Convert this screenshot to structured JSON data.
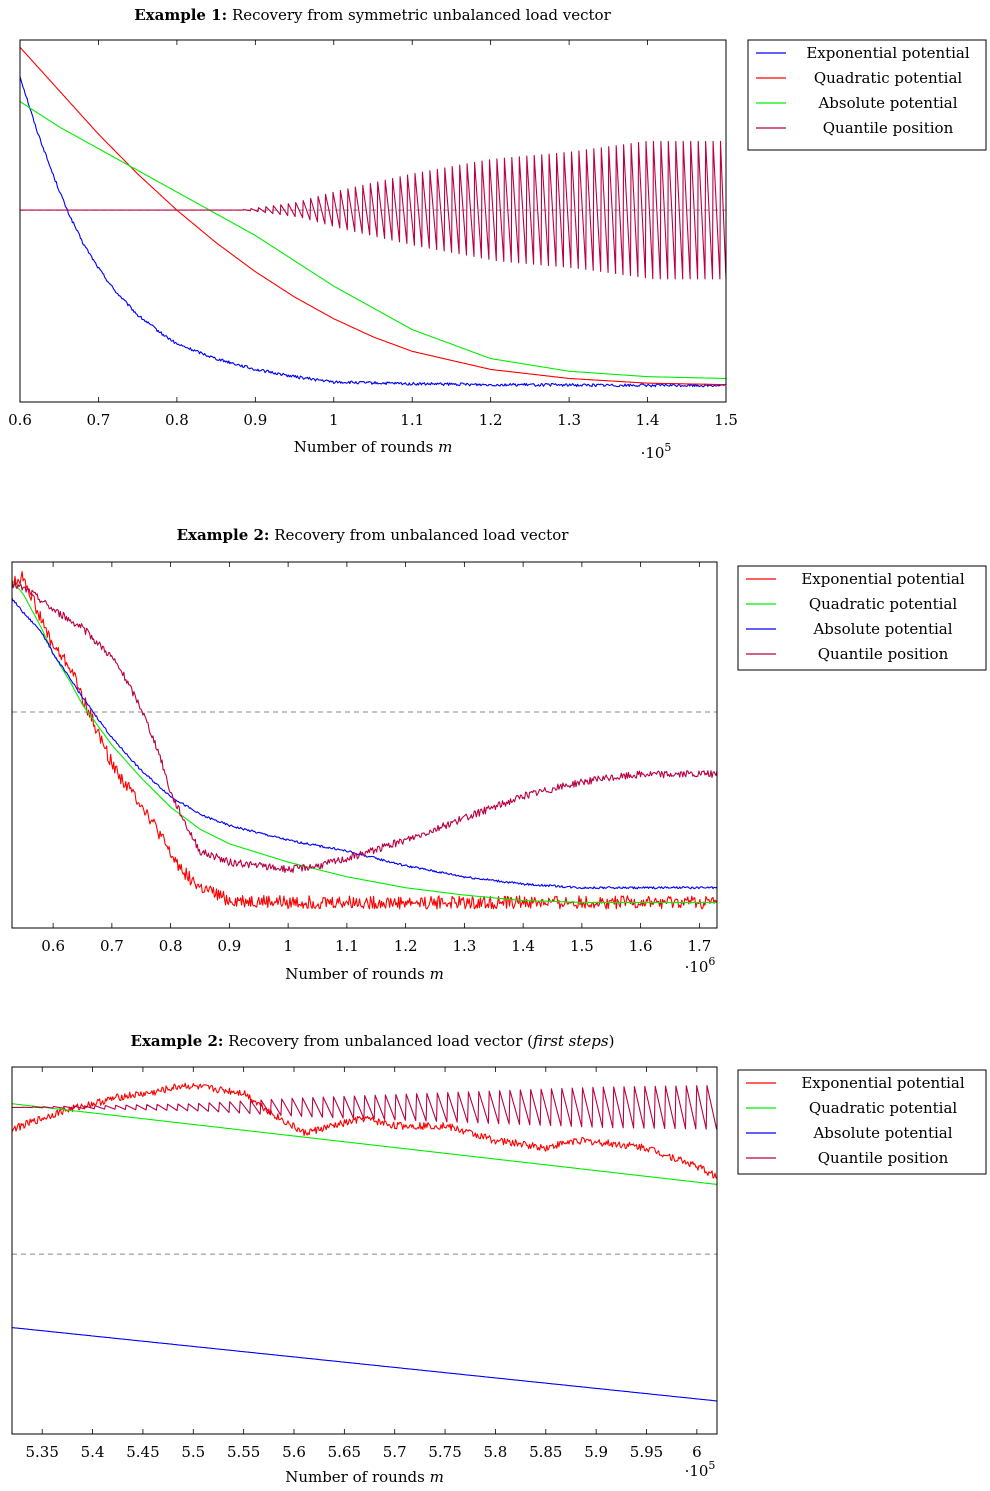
{
  "chart_data": [
    {
      "type": "line",
      "title_bold": "Example 1:",
      "title": "Recovery from symmetric unbalanced load vector",
      "title_italic": "",
      "xlabel": "Number of rounds m",
      "x_multiplier": "·10^5",
      "xlim": [
        0.6,
        1.5
      ],
      "ylim": [
        0,
        1
      ],
      "xticks": [
        "0.6",
        "0.7",
        "0.8",
        "0.9",
        "1",
        "1.1",
        "1.2",
        "1.3",
        "1.4",
        "1.5"
      ],
      "grid": false,
      "legend_position": "right",
      "reference_line": 0.53,
      "series": [
        {
          "name": "Exponential potential",
          "color": "#0000ff",
          "noise": 0.004,
          "x": [
            0.6,
            0.62,
            0.64,
            0.66,
            0.68,
            0.7,
            0.72,
            0.75,
            0.78,
            0.8,
            0.85,
            0.9,
            0.95,
            1.0,
            1.1,
            1.2,
            1.3,
            1.4,
            1.5
          ],
          "y": [
            0.9,
            0.76,
            0.64,
            0.53,
            0.44,
            0.37,
            0.31,
            0.24,
            0.19,
            0.16,
            0.12,
            0.09,
            0.07,
            0.055,
            0.05,
            0.048,
            0.047,
            0.046,
            0.046
          ]
        },
        {
          "name": "Quadratic potential",
          "color": "#ff0000",
          "noise": 0,
          "x": [
            0.6,
            0.65,
            0.7,
            0.75,
            0.8,
            0.85,
            0.9,
            0.95,
            1.0,
            1.05,
            1.1,
            1.2,
            1.3,
            1.4,
            1.5
          ],
          "y": [
            0.98,
            0.86,
            0.74,
            0.63,
            0.53,
            0.44,
            0.36,
            0.29,
            0.23,
            0.18,
            0.14,
            0.09,
            0.065,
            0.052,
            0.048
          ]
        },
        {
          "name": "Absolute potential",
          "color": "#00ee00",
          "noise": 0,
          "x": [
            0.6,
            0.65,
            0.7,
            0.75,
            0.8,
            0.85,
            0.9,
            0.95,
            1.0,
            1.05,
            1.1,
            1.15,
            1.2,
            1.3,
            1.4,
            1.5
          ],
          "y": [
            0.83,
            0.76,
            0.7,
            0.64,
            0.58,
            0.52,
            0.46,
            0.39,
            0.32,
            0.26,
            0.2,
            0.16,
            0.12,
            0.085,
            0.07,
            0.065
          ]
        },
        {
          "name": "Quantile position",
          "color": "#bb0044",
          "noise": 0,
          "sawtooth": {
            "period": 0.0095,
            "center": 0.53,
            "amp_x": [
              0.6,
              0.88,
              0.95,
              1.0,
              1.1,
              1.2,
              1.3,
              1.4,
              1.5
            ],
            "amp_y": [
              0,
              0,
              0.02,
              0.05,
              0.1,
              0.14,
              0.16,
              0.19,
              0.19
            ]
          }
        }
      ]
    },
    {
      "type": "line",
      "title_bold": "Example 2:",
      "title": "Recovery from unbalanced load vector",
      "title_italic": "",
      "xlabel": "Number of rounds m",
      "x_multiplier": "·10^6",
      "xlim": [
        0.53,
        1.73
      ],
      "ylim": [
        0,
        1
      ],
      "xticks": [
        "0.6",
        "0.7",
        "0.8",
        "0.9",
        "1",
        "1.1",
        "1.2",
        "1.3",
        "1.4",
        "1.5",
        "1.6",
        "1.7"
      ],
      "grid": false,
      "legend_position": "right",
      "reference_line": 0.59,
      "series": [
        {
          "name": "Exponential potential",
          "color": "#ff0000",
          "noise": 0.018,
          "x": [
            0.53,
            0.55,
            0.58,
            0.6,
            0.63,
            0.65,
            0.68,
            0.7,
            0.72,
            0.75,
            0.78,
            0.8,
            0.83,
            0.85,
            0.88,
            0.9,
            1.0,
            1.2,
            1.5,
            1.73
          ],
          "y": [
            0.94,
            0.96,
            0.84,
            0.77,
            0.71,
            0.63,
            0.52,
            0.45,
            0.4,
            0.34,
            0.26,
            0.2,
            0.14,
            0.11,
            0.09,
            0.075,
            0.07,
            0.07,
            0.07,
            0.07
          ]
        },
        {
          "name": "Quadratic potential",
          "color": "#00ee00",
          "noise": 0,
          "x": [
            0.53,
            0.55,
            0.58,
            0.6,
            0.63,
            0.65,
            0.7,
            0.75,
            0.8,
            0.85,
            0.9,
            1.0,
            1.1,
            1.2,
            1.3,
            1.4,
            1.5,
            1.73
          ],
          "y": [
            0.95,
            0.91,
            0.82,
            0.75,
            0.67,
            0.61,
            0.5,
            0.41,
            0.33,
            0.27,
            0.23,
            0.18,
            0.14,
            0.11,
            0.09,
            0.075,
            0.07,
            0.07
          ]
        },
        {
          "name": "Absolute potential",
          "color": "#0000ff",
          "noise": 0.003,
          "x": [
            0.53,
            0.55,
            0.58,
            0.6,
            0.65,
            0.7,
            0.75,
            0.8,
            0.85,
            0.9,
            1.0,
            1.1,
            1.2,
            1.3,
            1.4,
            1.5,
            1.6,
            1.73
          ],
          "y": [
            0.9,
            0.86,
            0.81,
            0.75,
            0.63,
            0.52,
            0.43,
            0.36,
            0.31,
            0.28,
            0.24,
            0.21,
            0.17,
            0.14,
            0.12,
            0.11,
            0.11,
            0.11
          ]
        },
        {
          "name": "Quantile position",
          "color": "#bb0044",
          "noise": 0.01,
          "x": [
            0.53,
            0.56,
            0.6,
            0.65,
            0.7,
            0.72,
            0.75,
            0.78,
            0.8,
            0.83,
            0.85,
            0.9,
            0.95,
            1.0,
            1.05,
            1.1,
            1.2,
            1.3,
            1.4,
            1.5,
            1.6,
            1.73
          ],
          "y": [
            0.94,
            0.92,
            0.87,
            0.82,
            0.74,
            0.69,
            0.6,
            0.48,
            0.37,
            0.27,
            0.21,
            0.18,
            0.17,
            0.16,
            0.17,
            0.19,
            0.24,
            0.3,
            0.36,
            0.4,
            0.42,
            0.42
          ]
        }
      ]
    },
    {
      "type": "line",
      "title_bold": "Example 2:",
      "title": "Recovery from unbalanced load vector (",
      "title_italic": "first steps",
      "title_end": ")",
      "xlabel": "Number of rounds m",
      "x_multiplier": "·10^5",
      "xlim": [
        5.32,
        6.02
      ],
      "ylim": [
        0,
        1
      ],
      "xticks": [
        "5.35",
        "5.4",
        "5.45",
        "5.5",
        "5.55",
        "5.6",
        "5.65",
        "5.7",
        "5.75",
        "5.8",
        "5.85",
        "5.9",
        "5.95",
        "6"
      ],
      "grid": false,
      "legend_position": "right",
      "reference_line": 0.49,
      "series": [
        {
          "name": "Exponential potential",
          "color": "#ff0000",
          "noise": 0.01,
          "x": [
            5.32,
            5.34,
            5.37,
            5.4,
            5.43,
            5.46,
            5.49,
            5.52,
            5.55,
            5.58,
            5.61,
            5.64,
            5.67,
            5.7,
            5.75,
            5.8,
            5.85,
            5.88,
            5.92,
            5.95,
            5.98,
            6.0,
            6.02
          ],
          "y": [
            0.83,
            0.85,
            0.88,
            0.9,
            0.92,
            0.93,
            0.95,
            0.94,
            0.93,
            0.87,
            0.82,
            0.84,
            0.86,
            0.84,
            0.84,
            0.8,
            0.78,
            0.8,
            0.79,
            0.78,
            0.75,
            0.73,
            0.7
          ]
        },
        {
          "name": "Quadratic potential",
          "color": "#00ee00",
          "noise": 0,
          "x": [
            5.32,
            6.02
          ],
          "y": [
            0.9,
            0.68
          ]
        },
        {
          "name": "Absolute potential",
          "color": "#0000ff",
          "noise": 0,
          "x": [
            5.32,
            6.02
          ],
          "y": [
            0.29,
            0.09
          ]
        },
        {
          "name": "Quantile position",
          "color": "#bb0044",
          "noise": 0,
          "sawtooth": {
            "period": 0.0103,
            "center": 0.89,
            "amp_x": [
              5.32,
              5.5,
              5.6,
              5.7,
              5.8,
              5.9,
              6.02
            ],
            "amp_y": [
              0,
              0.01,
              0.025,
              0.035,
              0.045,
              0.055,
              0.06
            ]
          }
        }
      ]
    }
  ]
}
